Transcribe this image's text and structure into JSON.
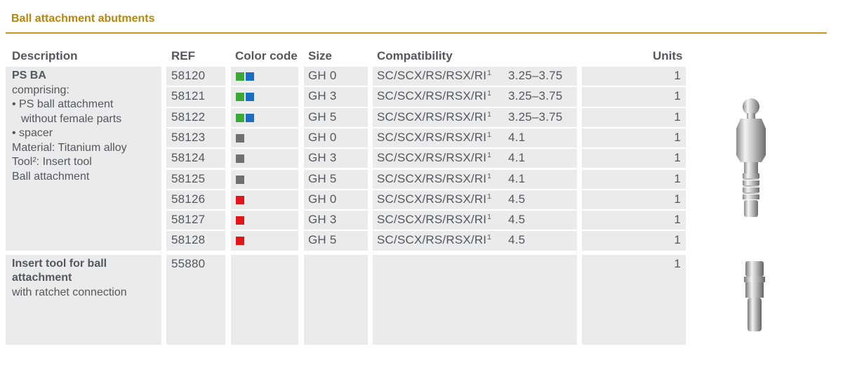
{
  "section": {
    "title": "Ball attachment abutments"
  },
  "headers": {
    "description": "Description",
    "ref": "REF",
    "color_code": "Color code",
    "size": "Size",
    "compatibility": "Compatibility",
    "units": "Units"
  },
  "groups": [
    {
      "title": "PS BA",
      "lines": [
        "comprising:",
        "• PS ball attachment",
        "  without female parts",
        "• spacer",
        "Material: Titanium alloy",
        "Tool²: Insert tool",
        "Ball attachment"
      ],
      "rows": [
        {
          "ref": "58120",
          "colors": [
            "#3aa935",
            "#1a6fc2"
          ],
          "size": "GH 0",
          "compat": "SC/SCX/RS/RSX/RI",
          "sup": "1",
          "diam": "3.25–3.75",
          "units": "1"
        },
        {
          "ref": "58121",
          "colors": [
            "#3aa935",
            "#1a6fc2"
          ],
          "size": "GH 3",
          "compat": "SC/SCX/RS/RSX/RI",
          "sup": "1",
          "diam": "3.25–3.75",
          "units": "1"
        },
        {
          "ref": "58122",
          "colors": [
            "#3aa935",
            "#1a6fc2"
          ],
          "size": "GH 5",
          "compat": "SC/SCX/RS/RSX/RI",
          "sup": "1",
          "diam": "3.25–3.75",
          "units": "1"
        },
        {
          "ref": "58123",
          "colors": [
            "#707070"
          ],
          "size": "GH 0",
          "compat": "SC/SCX/RS/RSX/RI",
          "sup": "1",
          "diam": "4.1",
          "units": "1"
        },
        {
          "ref": "58124",
          "colors": [
            "#707070"
          ],
          "size": "GH 3",
          "compat": "SC/SCX/RS/RSX/RI",
          "sup": "1",
          "diam": "4.1",
          "units": "1"
        },
        {
          "ref": "58125",
          "colors": [
            "#707070"
          ],
          "size": "GH 5",
          "compat": "SC/SCX/RS/RSX/RI",
          "sup": "1",
          "diam": "4.1",
          "units": "1"
        },
        {
          "ref": "58126",
          "colors": [
            "#e0161b"
          ],
          "size": "GH 0",
          "compat": "SC/SCX/RS/RSX/RI",
          "sup": "1",
          "diam": "4.5",
          "units": "1"
        },
        {
          "ref": "58127",
          "colors": [
            "#e0161b"
          ],
          "size": "GH 3",
          "compat": "SC/SCX/RS/RSX/RI",
          "sup": "1",
          "diam": "4.5",
          "units": "1"
        },
        {
          "ref": "58128",
          "colors": [
            "#e0161b"
          ],
          "size": "GH 5",
          "compat": "SC/SCX/RS/RSX/RI",
          "sup": "1",
          "diam": "4.5",
          "units": "1"
        }
      ]
    },
    {
      "title": "Insert tool for ball attachment",
      "lines": [
        "with ratchet connection"
      ],
      "rows": [
        {
          "ref": "55880",
          "colors": [],
          "size": "",
          "compat": "",
          "sup": "",
          "diam": "",
          "units": "1"
        }
      ]
    }
  ],
  "images": {
    "abutment": "ball-attachment-abutment-image",
    "tool": "insert-tool-image"
  }
}
